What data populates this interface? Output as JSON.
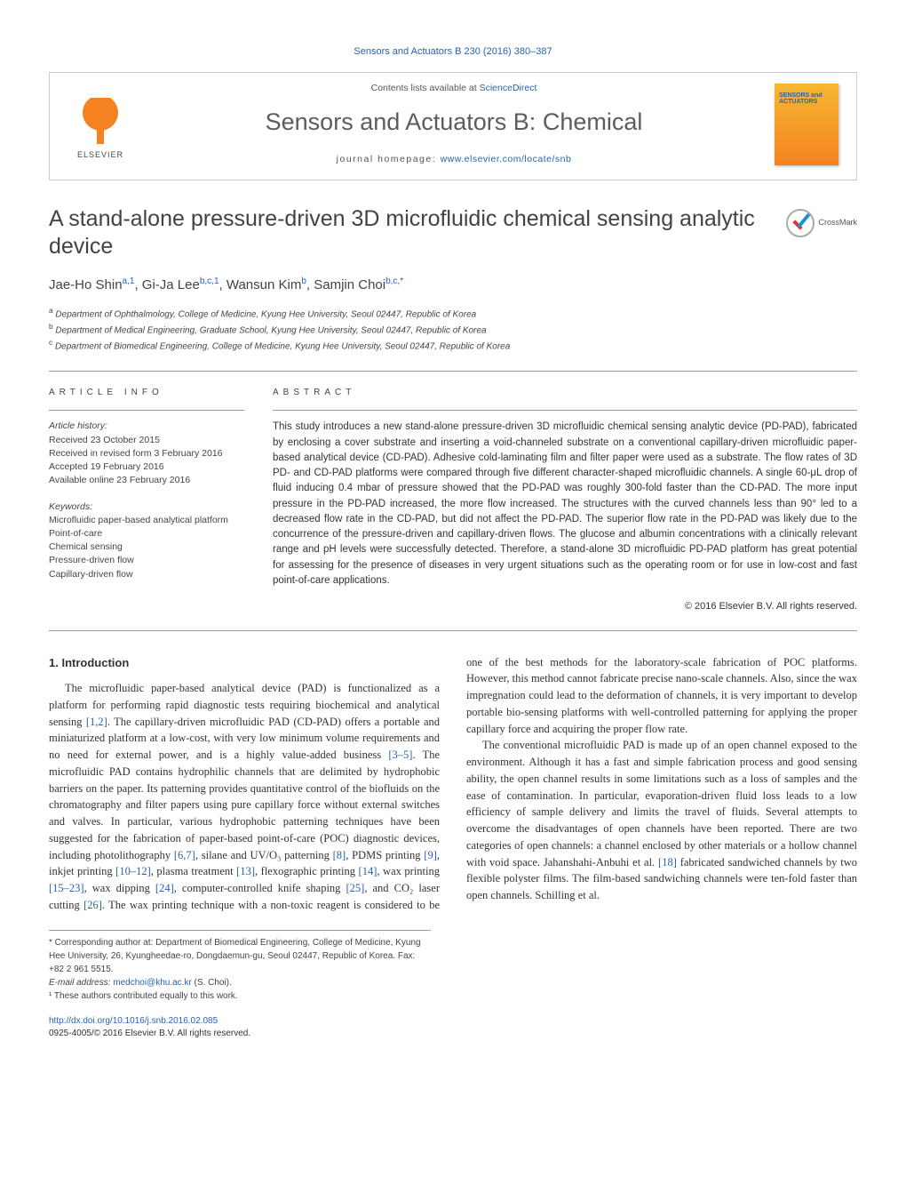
{
  "journal_ref": "Sensors and Actuators B 230 (2016) 380–387",
  "header": {
    "contents_prefix": "Contents lists available at ",
    "contents_link": "ScienceDirect",
    "journal_title": "Sensors and Actuators B: Chemical",
    "homepage_prefix": "journal homepage: ",
    "homepage_link": "www.elsevier.com/locate/snb",
    "publisher_name": "ELSEVIER",
    "cover_label": "SENSORS and\nACTUATORS"
  },
  "colors": {
    "link": "#2962b0",
    "elsevier_orange": "#f58220",
    "text_body": "#333333",
    "text_muted": "#555555",
    "rule": "#999999"
  },
  "article": {
    "title": "A stand-alone pressure-driven 3D microfluidic chemical sensing analytic device",
    "crossmark": "CrossMark",
    "authors_html": "Jae-Ho Shin<sup>a,1</sup>, Gi-Ja Lee<sup>b,c,1</sup>, Wansun Kim<sup>b</sup>, Samjin Choi<sup>b,c,*</sup>",
    "affiliations": [
      "a Department of Ophthalmology, College of Medicine, Kyung Hee University, Seoul 02447, Republic of Korea",
      "b Department of Medical Engineering, Graduate School, Kyung Hee University, Seoul 02447, Republic of Korea",
      "c Department of Biomedical Engineering, College of Medicine, Kyung Hee University, Seoul 02447, Republic of Korea"
    ]
  },
  "article_info": {
    "heading": "ARTICLE INFO",
    "history_label": "Article history:",
    "history": [
      "Received 23 October 2015",
      "Received in revised form 3 February 2016",
      "Accepted 19 February 2016",
      "Available online 23 February 2016"
    ],
    "keywords_label": "Keywords:",
    "keywords": [
      "Microfluidic paper-based analytical platform",
      "Point-of-care",
      "Chemical sensing",
      "Pressure-driven flow",
      "Capillary-driven flow"
    ]
  },
  "abstract": {
    "heading": "ABSTRACT",
    "text": "This study introduces a new stand-alone pressure-driven 3D microfluidic chemical sensing analytic device (PD-PAD), fabricated by enclosing a cover substrate and inserting a void-channeled substrate on a conventional capillary-driven microfluidic paper-based analytical device (CD-PAD). Adhesive cold-laminating film and filter paper were used as a substrate. The flow rates of 3D PD- and CD-PAD platforms were compared through five different character-shaped microfluidic channels. A single 60-μL drop of fluid inducing 0.4 mbar of pressure showed that the PD-PAD was roughly 300-fold faster than the CD-PAD. The more input pressure in the PD-PAD increased, the more flow increased. The structures with the curved channels less than 90° led to a decreased flow rate in the CD-PAD, but did not affect the PD-PAD. The superior flow rate in the PD-PAD was likely due to the concurrence of the pressure-driven and capillary-driven flows. The glucose and albumin concentrations with a clinically relevant range and pH levels were successfully detected. Therefore, a stand-alone 3D microfluidic PD-PAD platform has great potential for assessing for the presence of diseases in very urgent situations such as the operating room or for use in low-cost and fast point-of-care applications.",
    "copyright": "© 2016 Elsevier B.V. All rights reserved."
  },
  "body": {
    "intro_heading": "1. Introduction",
    "para1": "The microfluidic paper-based analytical device (PAD) is functionalized as a platform for performing rapid diagnostic tests requiring biochemical and analytical sensing [1,2]. The capillary-driven microfluidic PAD (CD-PAD) offers a portable and miniaturized platform at a low-cost, with very low minimum volume requirements and no need for external power, and is a highly value-added business [3–5]. The microfluidic PAD contains hydrophilic channels that are delimited by hydrophobic barriers on the paper. Its patterning provides quantitative control of the biofluids on the chromatography and filter papers using pure capillary force without external switches and valves. In particular, various hydrophobic patterning techniques have been suggested for the fabrication of paper-based point-of-care (POC) diagnostic devices, including photolithography [6,7], silane and UV/O₃ patterning [8], PDMS printing [9], inkjet printing [10–12], plasma treatment [13], flexographic printing [14], wax printing [15–23], wax dipping [24], computer-controlled knife shaping [25], and CO₂ laser cutting [26]. The wax printing technique with a non-toxic reagent is considered to be one of the best methods for the laboratory-scale fabrication of POC platforms. However, this method cannot fabricate precise nano-scale channels. Also, since the wax impregnation could lead to the deformation of channels, it is very important to develop portable bio-sensing platforms with well-controlled patterning for applying the proper capillary force and acquiring the proper flow rate.",
    "para2": "The conventional microfluidic PAD is made up of an open channel exposed to the environment. Although it has a fast and simple fabrication process and good sensing ability, the open channel results in some limitations such as a loss of samples and the ease of contamination. In particular, evaporation-driven fluid loss leads to a low efficiency of sample delivery and limits the travel of fluids. Several attempts to overcome the disadvantages of open channels have been reported. There are two categories of open channels: a channel enclosed by other materials or a hollow channel with void space. Jahanshahi-Anbuhi et al. [18] fabricated sandwiched channels by two flexible polyster films. The film-based sandwiching channels were ten-fold faster than open channels. Schilling et al."
  },
  "footnotes": {
    "corr": "* Corresponding author at: Department of Biomedical Engineering, College of Medicine, Kyung Hee University, 26, Kyungheedae-ro, Dongdaemun-gu, Seoul 02447, Republic of Korea. Fax: +82 2 961 5515.",
    "email_label": "E-mail address: ",
    "email": "medchoi@khu.ac.kr",
    "email_suffix": " (S. Choi).",
    "equal": "¹ These authors contributed equally to this work."
  },
  "doi": {
    "url": "http://dx.doi.org/10.1016/j.snb.2016.02.085",
    "issn_line": "0925-4005/© 2016 Elsevier B.V. All rights reserved."
  }
}
